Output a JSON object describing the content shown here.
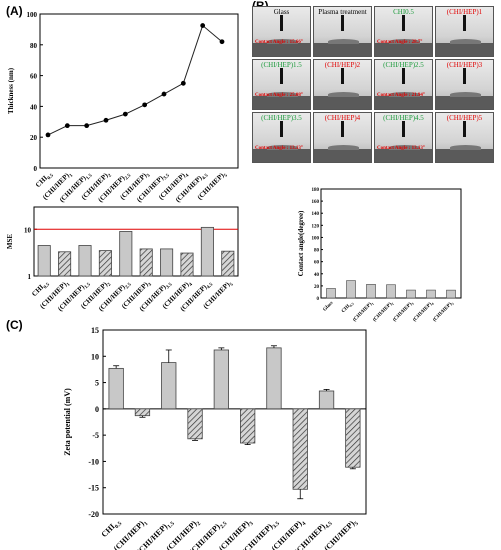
{
  "panels": {
    "a": "(A)",
    "b": "(B)",
    "c": "(C)"
  },
  "colors": {
    "bar_fill": "#c8c8c8",
    "mse_line": "#e00000",
    "label_red": "#e00000",
    "label_green": "#1a9a3a"
  },
  "contact_photos": [
    {
      "label": "Glass",
      "color": "black",
      "angle": ""
    },
    {
      "label": "Plasma treatment",
      "color": "black",
      "angle": ""
    },
    {
      "label": "CHI0.5",
      "color": "green",
      "angle": ""
    },
    {
      "label": "(CHI/HEP)1",
      "color": "red",
      "angle": ""
    },
    {
      "label": "(CHI/HEP)1.5",
      "color": "green",
      "angle": "Contact Angle : 25.08°"
    },
    {
      "label": "(CHI/HEP)2",
      "color": "red",
      "angle": ""
    },
    {
      "label": "(CHI/HEP)2.5",
      "color": "green",
      "angle": "Contact Angle : 21.94°"
    },
    {
      "label": "(CHI/HEP)3",
      "color": "red",
      "angle": ""
    },
    {
      "label": "(CHI/HEP)3.5",
      "color": "green",
      "angle": "Contact Angle : 13.13°"
    },
    {
      "label": "(CHI/HEP)4",
      "color": "red",
      "angle": ""
    },
    {
      "label": "(CHI/HEP)4.5",
      "color": "green",
      "angle": "Contact Angle : 13.13°"
    },
    {
      "label": "(CHI/HEP)5",
      "color": "red",
      "angle": ""
    }
  ],
  "contact_photo_extra_angles": [
    "Contact Angle : 15.66°",
    "Contact Angle : 28.7°"
  ],
  "chart_data": [
    {
      "type": "line",
      "ylabel": "Thickness (nm)",
      "ylim": [
        0,
        100
      ],
      "yticks": [
        0,
        20,
        40,
        60,
        80,
        100
      ],
      "categories": [
        "CHI0.5",
        "(CHI/HEP)1",
        "(CHI/HEP)1.5",
        "(CHI/HEP)2",
        "(CHI/HEP)2.5",
        "(CHI/HEP)3",
        "(CHI/HEP)3.5",
        "(CHI/HEP)4",
        "(CHI/HEP)4.5",
        "(CHI/HEP)5"
      ],
      "values": [
        21.5,
        27.5,
        27.5,
        31,
        35,
        41,
        48,
        55,
        92.5,
        82
      ]
    },
    {
      "type": "bar",
      "ylabel": "MSE",
      "scale": "log",
      "yticks": [
        1,
        10
      ],
      "ylim": [
        1,
        30
      ],
      "reference_line": 10,
      "categories": [
        "CHI0.5",
        "(CHI/HEP)1",
        "(CHI/HEP)1.5",
        "(CHI/HEP)2",
        "(CHI/HEP)2.5",
        "(CHI/HEP)3",
        "(CHI/HEP)3.5",
        "(CHI/HEP)4",
        "(CHI/HEP)4.5",
        "(CHI/HEP)5"
      ],
      "values": [
        4.5,
        3.3,
        4.5,
        3.5,
        9,
        3.8,
        3.8,
        3.1,
        11,
        3.4
      ],
      "hatched": [
        false,
        true,
        false,
        true,
        false,
        true,
        false,
        true,
        false,
        true
      ]
    },
    {
      "type": "bar",
      "ylabel": "Contact angle(degree)",
      "ylim": [
        0,
        180
      ],
      "yticks": [
        0,
        20,
        40,
        60,
        80,
        100,
        120,
        140,
        160,
        180
      ],
      "categories": [
        "Glass",
        "CHI0.5",
        "(CHI/HEP)1",
        "(CHI/HEP)2",
        "(CHI/HEP)3",
        "(CHI/HEP)4",
        "(CHI/HEP)5"
      ],
      "values": [
        15.7,
        28.7,
        22.5,
        21.9,
        13.1,
        13.1,
        13.0
      ]
    },
    {
      "type": "bar",
      "ylabel": "Zeta potential (mV)",
      "ylim": [
        -20,
        15
      ],
      "yticks": [
        -20,
        -15,
        -10,
        -5,
        0,
        5,
        10,
        15
      ],
      "categories": [
        "CHI0.5",
        "(CHI/HEP)1",
        "(CHI/HEP)1.5",
        "(CHI/HEP)2",
        "(CHI/HEP)2.5",
        "(CHI/HEP)3",
        "(CHI/HEP)3.5",
        "(CHI/HEP)4",
        "(CHI/HEP)4.5",
        "(CHI/HEP)5"
      ],
      "values": [
        7.7,
        -1.3,
        8.8,
        -5.7,
        11.2,
        -6.5,
        11.6,
        -15.3,
        3.4,
        -11.1
      ],
      "errors": [
        0.5,
        0.3,
        2.4,
        0.3,
        0.4,
        0.3,
        0.4,
        1.8,
        0.3,
        0.3
      ],
      "hatched": [
        false,
        true,
        false,
        true,
        false,
        true,
        false,
        true,
        false,
        true
      ]
    }
  ]
}
